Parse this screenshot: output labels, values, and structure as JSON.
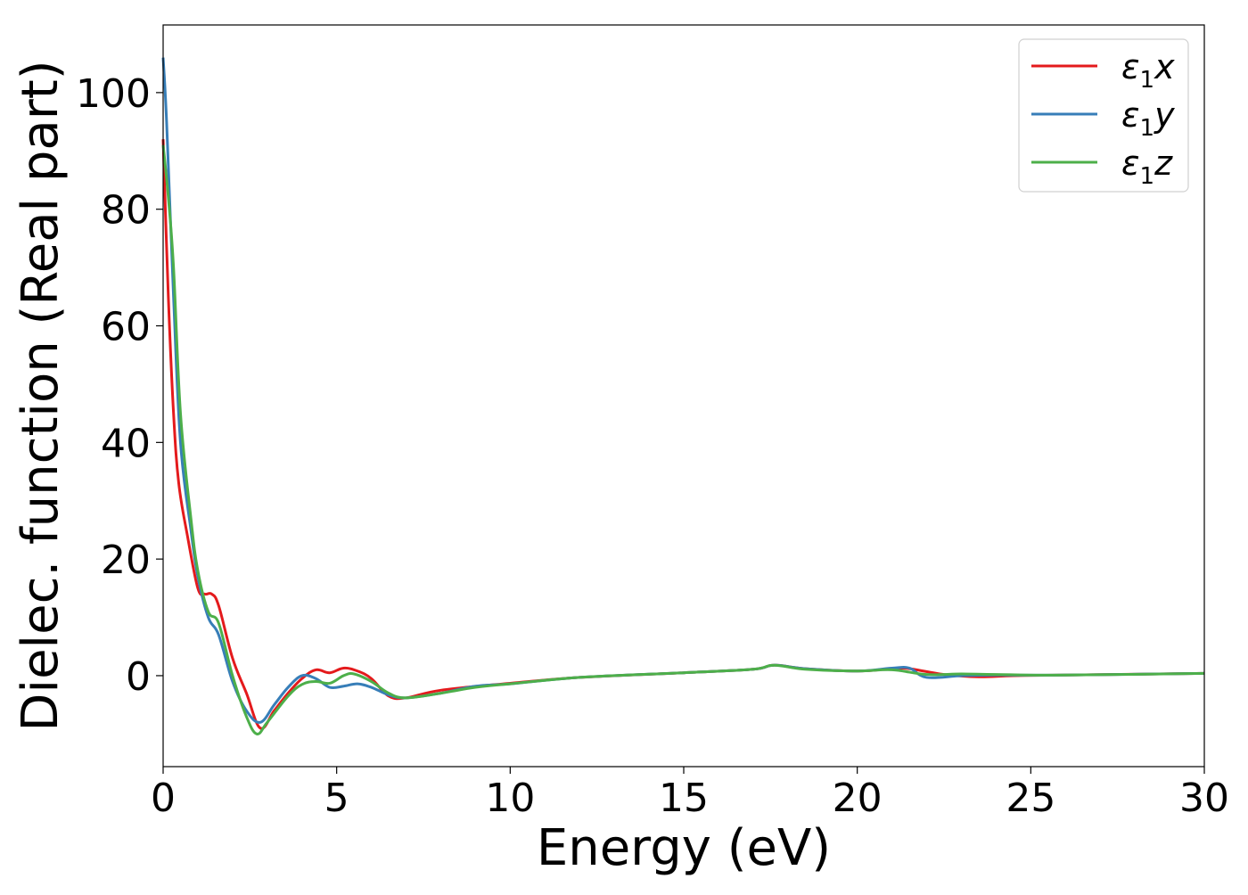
{
  "chart_data": {
    "type": "line",
    "title": "",
    "xlabel": "Energy (eV)",
    "ylabel": "Dielec. function (Real part)",
    "xlim": [
      0,
      30
    ],
    "ylim": [
      -15.6,
      111.6
    ],
    "xticks": [
      0,
      5,
      10,
      15,
      20,
      25,
      30
    ],
    "yticks": [
      0,
      20,
      40,
      60,
      80,
      100
    ],
    "grid": false,
    "legend_position": "top-right",
    "series": [
      {
        "name": "ε₁x",
        "label_base": "ε",
        "label_sub": "1",
        "label_suffix": "x",
        "color": "#e41a1c",
        "x": [
          0,
          0.15,
          0.3,
          0.45,
          0.7,
          1.0,
          1.2,
          1.4,
          1.6,
          2.0,
          2.4,
          2.8,
          3.2,
          3.6,
          4.0,
          4.4,
          4.8,
          5.2,
          5.6,
          6.0,
          6.5,
          7.0,
          8.0,
          10,
          12,
          15,
          17,
          17.6,
          18.5,
          20,
          21,
          21.5,
          22.5,
          23.5,
          24.5,
          26,
          30
        ],
        "y": [
          92,
          65,
          45,
          33,
          24,
          15,
          14,
          14,
          12,
          3,
          -3,
          -9,
          -6,
          -3,
          -0.5,
          1,
          0.5,
          1.3,
          0.8,
          -0.5,
          -3.5,
          -3.8,
          -2.5,
          -1.3,
          -0.3,
          0.5,
          1.1,
          1.8,
          1.2,
          0.8,
          1.2,
          1.2,
          0.2,
          -0.2,
          0,
          0.1,
          0.4
        ]
      },
      {
        "name": "ε₁y",
        "label_base": "ε",
        "label_sub": "1",
        "label_suffix": "y",
        "color": "#377eb8",
        "x": [
          0,
          0.1,
          0.3,
          0.5,
          0.8,
          1.0,
          1.3,
          1.6,
          2.0,
          2.4,
          2.8,
          3.2,
          3.6,
          4.0,
          4.4,
          4.8,
          5.2,
          5.6,
          6.0,
          6.5,
          7.0,
          8.0,
          9.0,
          10,
          12,
          15,
          17,
          17.6,
          18.5,
          20,
          21,
          21.5,
          22,
          23,
          24,
          26,
          30
        ],
        "y": [
          106,
          95,
          65,
          40,
          25,
          17,
          10,
          7,
          -1,
          -6,
          -8,
          -5,
          -2,
          0,
          -0.5,
          -2,
          -1.8,
          -1.4,
          -2,
          -3.3,
          -3.8,
          -3,
          -1.8,
          -1.4,
          -0.3,
          0.5,
          1.1,
          1.8,
          1.2,
          0.8,
          1.3,
          1.3,
          -0.3,
          0,
          0.1,
          0.1,
          0.4
        ]
      },
      {
        "name": "ε₁z",
        "label_base": "ε",
        "label_sub": "1",
        "label_suffix": "z",
        "color": "#4daf4a",
        "x": [
          0,
          0.15,
          0.3,
          0.5,
          0.8,
          1.0,
          1.3,
          1.6,
          2.0,
          2.4,
          2.7,
          3.0,
          3.6,
          4.0,
          4.4,
          4.8,
          5.2,
          5.5,
          6.0,
          6.5,
          7.0,
          8.0,
          9.0,
          10,
          12,
          15,
          17,
          17.6,
          18.5,
          20,
          21,
          22,
          23,
          24,
          26,
          30
        ],
        "y": [
          91,
          82,
          70,
          45,
          27,
          18,
          11,
          9,
          0,
          -7,
          -10,
          -8,
          -3.5,
          -1.5,
          -1,
          -1.3,
          0,
          0.3,
          -1,
          -3,
          -3.8,
          -3,
          -2,
          -1.4,
          -0.3,
          0.5,
          1.1,
          1.8,
          1.1,
          0.8,
          1.0,
          0.2,
          0.3,
          0.2,
          0.1,
          0.4
        ]
      }
    ]
  }
}
